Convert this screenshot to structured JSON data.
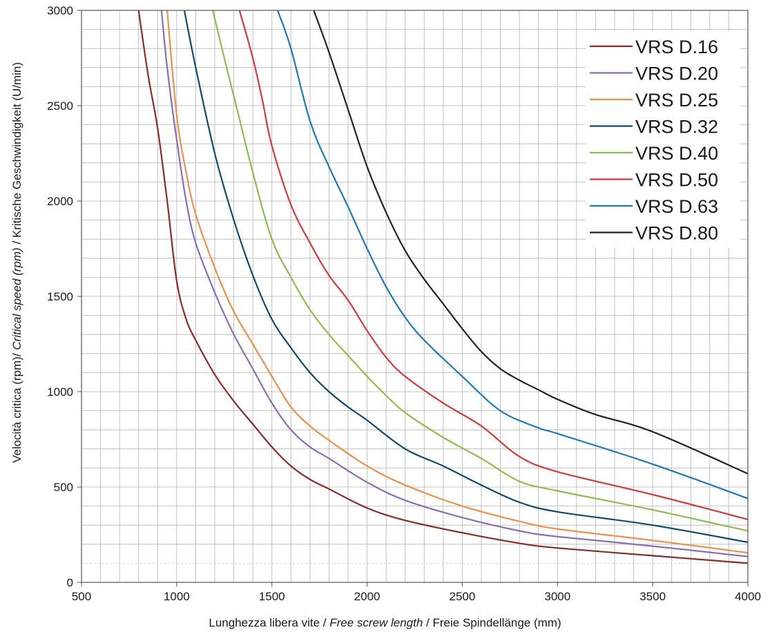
{
  "chart_data": {
    "type": "line",
    "xlabel": {
      "part1": "Lunghezza libera vite",
      "sep1": " / ",
      "part2": "Free screw length",
      "sep2": " / ",
      "part3": "Freie Spindellänge (mm)"
    },
    "ylabel": {
      "part1": "Velocità critica (rpm)/ ",
      "part2": "Critical speed (rpm)",
      "part3": " / Kritische Geschwindigkeit (U/min)"
    },
    "xlim": [
      500,
      4000
    ],
    "ylim": [
      0,
      3000
    ],
    "xticks": [
      "500",
      "1000",
      "1500",
      "2000",
      "2500",
      "3000",
      "3500",
      "4000"
    ],
    "yticks": [
      "0",
      "500",
      "1000",
      "1500",
      "2000",
      "2500",
      "3000"
    ],
    "grid": true,
    "legend_position": "top-right",
    "series": [
      {
        "name": "VRS D.16",
        "color": "#8b2a2a",
        "x": [
          800,
          850,
          900,
          950,
          1000,
          1050,
          1100,
          1200,
          1300,
          1400,
          1500,
          1600,
          1700,
          1800,
          2000,
          2200,
          2500,
          2800,
          3000,
          3500,
          4000
        ],
        "y": [
          3000,
          2660,
          2380,
          2000,
          1580,
          1380,
          1270,
          1090,
          950,
          830,
          710,
          610,
          540,
          490,
          390,
          325,
          260,
          205,
          180,
          140,
          100
        ]
      },
      {
        "name": "VRS D.20",
        "color": "#8a6bb8",
        "x": [
          920,
          950,
          1000,
          1050,
          1100,
          1200,
          1300,
          1400,
          1500,
          1600,
          1700,
          1800,
          2000,
          2200,
          2500,
          2800,
          3000,
          3500,
          4000
        ],
        "y": [
          3000,
          2700,
          2320,
          2000,
          1780,
          1520,
          1300,
          1120,
          940,
          800,
          710,
          650,
          525,
          430,
          340,
          270,
          240,
          190,
          135
        ]
      },
      {
        "name": "VRS D.25",
        "color": "#f08f48",
        "x": [
          950,
          1000,
          1050,
          1100,
          1200,
          1300,
          1400,
          1500,
          1600,
          1700,
          1800,
          2000,
          2200,
          2500,
          2800,
          3000,
          3500,
          4000
        ],
        "y": [
          3000,
          2450,
          2150,
          1930,
          1650,
          1420,
          1250,
          1080,
          920,
          820,
          745,
          610,
          510,
          400,
          320,
          280,
          220,
          155
        ]
      },
      {
        "name": "VRS D.32",
        "color": "#0f4a6e",
        "x": [
          1040,
          1100,
          1200,
          1300,
          1400,
          1500,
          1600,
          1700,
          1800,
          1900,
          2000,
          2200,
          2400,
          2600,
          2800,
          3000,
          3500,
          4000
        ],
        "y": [
          3000,
          2700,
          2250,
          1900,
          1610,
          1380,
          1230,
          1100,
          1000,
          920,
          850,
          700,
          610,
          510,
          420,
          370,
          300,
          210
        ]
      },
      {
        "name": "VRS D.40",
        "color": "#8fbc4a",
        "x": [
          1190,
          1250,
          1300,
          1400,
          1500,
          1600,
          1700,
          1800,
          1900,
          2000,
          2100,
          2200,
          2400,
          2600,
          2800,
          3000,
          3500,
          4000
        ],
        "y": [
          3000,
          2750,
          2550,
          2150,
          1800,
          1600,
          1430,
          1300,
          1190,
          1080,
          980,
          890,
          760,
          650,
          530,
          480,
          380,
          270
        ]
      },
      {
        "name": "VRS D.50",
        "color": "#d6383e",
        "x": [
          1330,
          1400,
          1450,
          1500,
          1600,
          1700,
          1800,
          1900,
          2000,
          2100,
          2200,
          2400,
          2600,
          2800,
          3000,
          3500,
          4000
        ],
        "y": [
          3000,
          2750,
          2530,
          2290,
          1980,
          1780,
          1610,
          1480,
          1320,
          1180,
          1080,
          940,
          820,
          660,
          580,
          460,
          330
        ]
      },
      {
        "name": "VRS D.63",
        "color": "#1a7ab8",
        "x": [
          1530,
          1600,
          1700,
          1800,
          1900,
          2000,
          2100,
          2200,
          2300,
          2500,
          2700,
          2900,
          3000,
          3500,
          4000
        ],
        "y": [
          3000,
          2800,
          2420,
          2180,
          1970,
          1750,
          1550,
          1390,
          1270,
          1080,
          900,
          810,
          780,
          620,
          440
        ]
      },
      {
        "name": "VRS D.80",
        "color": "#222222",
        "x": [
          1720,
          1800,
          1900,
          2000,
          2100,
          2200,
          2300,
          2400,
          2500,
          2600,
          2700,
          2800,
          2900,
          3000,
          3200,
          3500,
          4000
        ],
        "y": [
          3000,
          2780,
          2480,
          2180,
          1940,
          1740,
          1590,
          1460,
          1330,
          1210,
          1120,
          1060,
          1010,
          960,
          880,
          790,
          570
        ]
      }
    ]
  }
}
